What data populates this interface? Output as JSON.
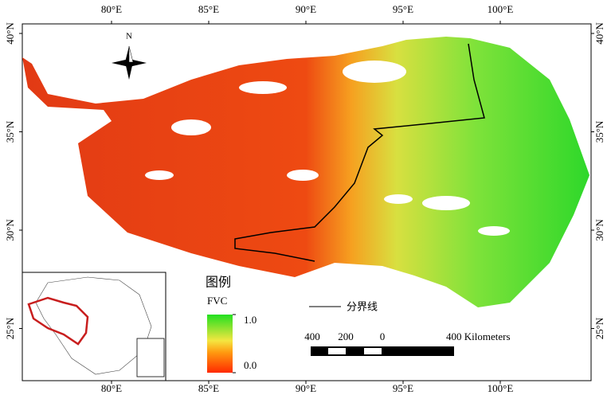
{
  "map": {
    "lon_ticks": [
      {
        "value": 80,
        "label": "80°E"
      },
      {
        "value": 85,
        "label": "85°E"
      },
      {
        "value": 90,
        "label": "90°E"
      },
      {
        "value": 95,
        "label": "95°E"
      },
      {
        "value": 100,
        "label": "100°E"
      }
    ],
    "lat_ticks": [
      {
        "value": 40,
        "label": "40°N"
      },
      {
        "value": 35,
        "label": "35°N"
      },
      {
        "value": 30,
        "label": "30°N"
      },
      {
        "value": 25,
        "label": "25°N"
      }
    ],
    "north_arrow": "N",
    "legend": {
      "title": "图例",
      "variable": "FVC",
      "max": {
        "value": 1.0,
        "label": "1.0"
      },
      "min": {
        "value": 0,
        "label": "0.0"
      },
      "boundary": "分界线"
    },
    "scale_bar": [
      "400",
      "200",
      "0",
      "400 Kilometers"
    ]
  }
}
